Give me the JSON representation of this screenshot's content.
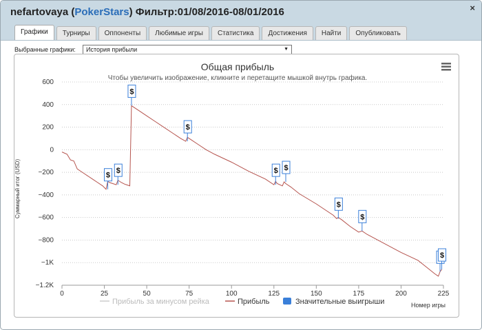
{
  "window": {
    "user": "nefartovaya",
    "site": "PokerStars",
    "filter_label": "Фильтр:",
    "filter_range": "01/08/2016-08/01/2016",
    "close_glyph": "×"
  },
  "tabs": [
    {
      "label": "Графики",
      "active": true
    },
    {
      "label": "Турниры"
    },
    {
      "label": "Оппоненты"
    },
    {
      "label": "Любимые игры"
    },
    {
      "label": "Статистика"
    },
    {
      "label": "Достижения"
    },
    {
      "label": "Найти"
    },
    {
      "label": "Опубликовать"
    }
  ],
  "selector": {
    "label": "Выбранные графики:",
    "value": "История прибыли"
  },
  "icons": {
    "menu": "hamburger-menu-icon",
    "close": "close-icon",
    "dropdown": "chevron-down-icon"
  },
  "chart_data": {
    "type": "line",
    "title": "Общая прибыль",
    "subtitle": "Чтобы увеличить изображение, кликните и перетащите мышкой внутрь графика.",
    "xlabel": "Номер игры",
    "ylabel": "Суммарный итог (USD)",
    "xlim": [
      0,
      225
    ],
    "ylim": [
      -1200,
      600
    ],
    "xticks": [
      0,
      25,
      50,
      75,
      100,
      125,
      150,
      175,
      200,
      225
    ],
    "yticks": [
      {
        "value": 600,
        "label": "600"
      },
      {
        "value": 400,
        "label": "400"
      },
      {
        "value": 200,
        "label": "200"
      },
      {
        "value": 0,
        "label": "0"
      },
      {
        "value": -200,
        "label": "−200"
      },
      {
        "value": -400,
        "label": "−400"
      },
      {
        "value": -600,
        "label": "−600"
      },
      {
        "value": -800,
        "label": "−800"
      },
      {
        "value": -1000,
        "label": "−1K"
      },
      {
        "value": -1200,
        "label": "−1.2K"
      }
    ],
    "grid": true,
    "legend_position": "bottom",
    "series": [
      {
        "name": "Прибыль за минусом рейка",
        "color": "#cccccc",
        "x": [],
        "y": []
      },
      {
        "name": "Прибыль",
        "color": "#b5534d",
        "x": [
          0,
          3,
          5,
          7,
          9,
          12,
          15,
          18,
          21,
          24,
          26,
          27,
          28,
          30,
          32,
          33,
          35,
          37,
          38,
          40,
          41,
          45,
          50,
          55,
          60,
          65,
          70,
          73,
          74,
          76,
          80,
          85,
          90,
          100,
          110,
          120,
          125,
          126,
          127,
          130,
          131,
          132,
          135,
          140,
          150,
          160,
          162,
          163,
          165,
          170,
          175,
          177,
          180,
          190,
          200,
          210,
          215,
          220,
          222,
          223,
          224
        ],
        "y": [
          -20,
          -40,
          -90,
          -100,
          -170,
          -200,
          -230,
          -260,
          -290,
          -320,
          -350,
          -280,
          -290,
          -300,
          -310,
          -270,
          -290,
          -305,
          -310,
          -320,
          390,
          350,
          300,
          250,
          200,
          150,
          100,
          75,
          110,
          90,
          50,
          0,
          -40,
          -110,
          -190,
          -260,
          -310,
          -280,
          -300,
          -320,
          -285,
          -300,
          -330,
          -390,
          -480,
          -580,
          -610,
          -600,
          -620,
          -680,
          -730,
          -720,
          -750,
          -830,
          -910,
          -980,
          -1040,
          -1100,
          -1120,
          -1080,
          -1060
        ]
      }
    ],
    "flags": [
      {
        "x": 27,
        "y": -350,
        "label": "$"
      },
      {
        "x": 33,
        "y": -310,
        "label": "$"
      },
      {
        "x": 41,
        "y": 390,
        "label": "$"
      },
      {
        "x": 74,
        "y": 75,
        "label": "$"
      },
      {
        "x": 126,
        "y": -310,
        "label": "$"
      },
      {
        "x": 132,
        "y": -285,
        "label": "$"
      },
      {
        "x": 163,
        "y": -610,
        "label": "$"
      },
      {
        "x": 177,
        "y": -720,
        "label": "$"
      },
      {
        "x": 223,
        "y": -1080,
        "label": "$"
      },
      {
        "x": 224,
        "y": -1060,
        "label": "$"
      }
    ],
    "legend": [
      {
        "label": "Прибыль за минусом рейка",
        "color": "#cccccc",
        "kind": "line"
      },
      {
        "label": "Прибыль",
        "color": "#b5534d",
        "kind": "line"
      },
      {
        "label": "Значительные выигрыши",
        "color": "#3a7fd9",
        "kind": "flag"
      }
    ]
  }
}
